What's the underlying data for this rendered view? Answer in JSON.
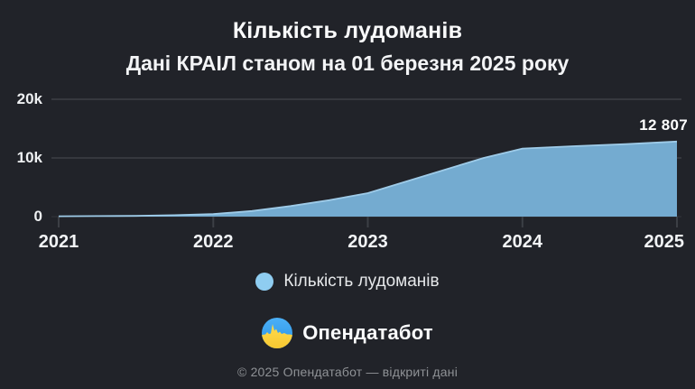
{
  "theme": {
    "background": "#212329",
    "text_primary": "#f5f6f8",
    "text_secondary": "#e6e8ea",
    "text_muted": "#8f9296",
    "grid_color": "#3d4046",
    "baseline_color": "#33363c",
    "tick_color": "#3c3f45",
    "area_fill": "#74abd0",
    "area_stroke": "#9ecbe8",
    "legend_dot": "#8fcdf1",
    "logo_blue": "#2f9ff0",
    "logo_yellow": "#ffd43d"
  },
  "header": {
    "title": "Кількість лудоманів",
    "subtitle": "Дані КРАІЛ станом на 01 березня 2025 року"
  },
  "chart_data": {
    "type": "area",
    "title": "Кількість лудоманів",
    "xlabel": "",
    "ylabel": "",
    "xlim": [
      2021,
      2025
    ],
    "ylim": [
      0,
      20000
    ],
    "grid": "horizontal",
    "legend_position": "bottom",
    "x_ticks": [
      {
        "label": "2021",
        "value": 2021
      },
      {
        "label": "2022",
        "value": 2022
      },
      {
        "label": "2023",
        "value": 2023
      },
      {
        "label": "2024",
        "value": 2024
      },
      {
        "label": "2025",
        "value": 2025
      }
    ],
    "y_ticks": [
      {
        "label": "20k",
        "value": 20000
      },
      {
        "label": "10k",
        "value": 10000
      },
      {
        "label": "0",
        "value": 0
      }
    ],
    "series": [
      {
        "name": "Кількість лудоманів",
        "points": [
          [
            2021.0,
            60
          ],
          [
            2021.25,
            90
          ],
          [
            2021.5,
            130
          ],
          [
            2021.75,
            250
          ],
          [
            2022.0,
            430
          ],
          [
            2022.25,
            950
          ],
          [
            2022.5,
            1800
          ],
          [
            2022.75,
            2800
          ],
          [
            2023.0,
            4000
          ],
          [
            2023.25,
            6000
          ],
          [
            2023.5,
            8000
          ],
          [
            2023.75,
            10000
          ],
          [
            2024.0,
            11600
          ],
          [
            2024.33,
            12000
          ],
          [
            2024.67,
            12350
          ],
          [
            2025.0,
            12807
          ]
        ]
      }
    ],
    "end_value": 12807,
    "end_label": "12 807"
  },
  "legend": {
    "label": "Кількість лудоманів"
  },
  "branding": {
    "name": "Опендатабот",
    "logo": "opendatabot-pulse-circle"
  },
  "footer": {
    "copyright": "© 2025 Опендатабот — відкриті дані"
  }
}
